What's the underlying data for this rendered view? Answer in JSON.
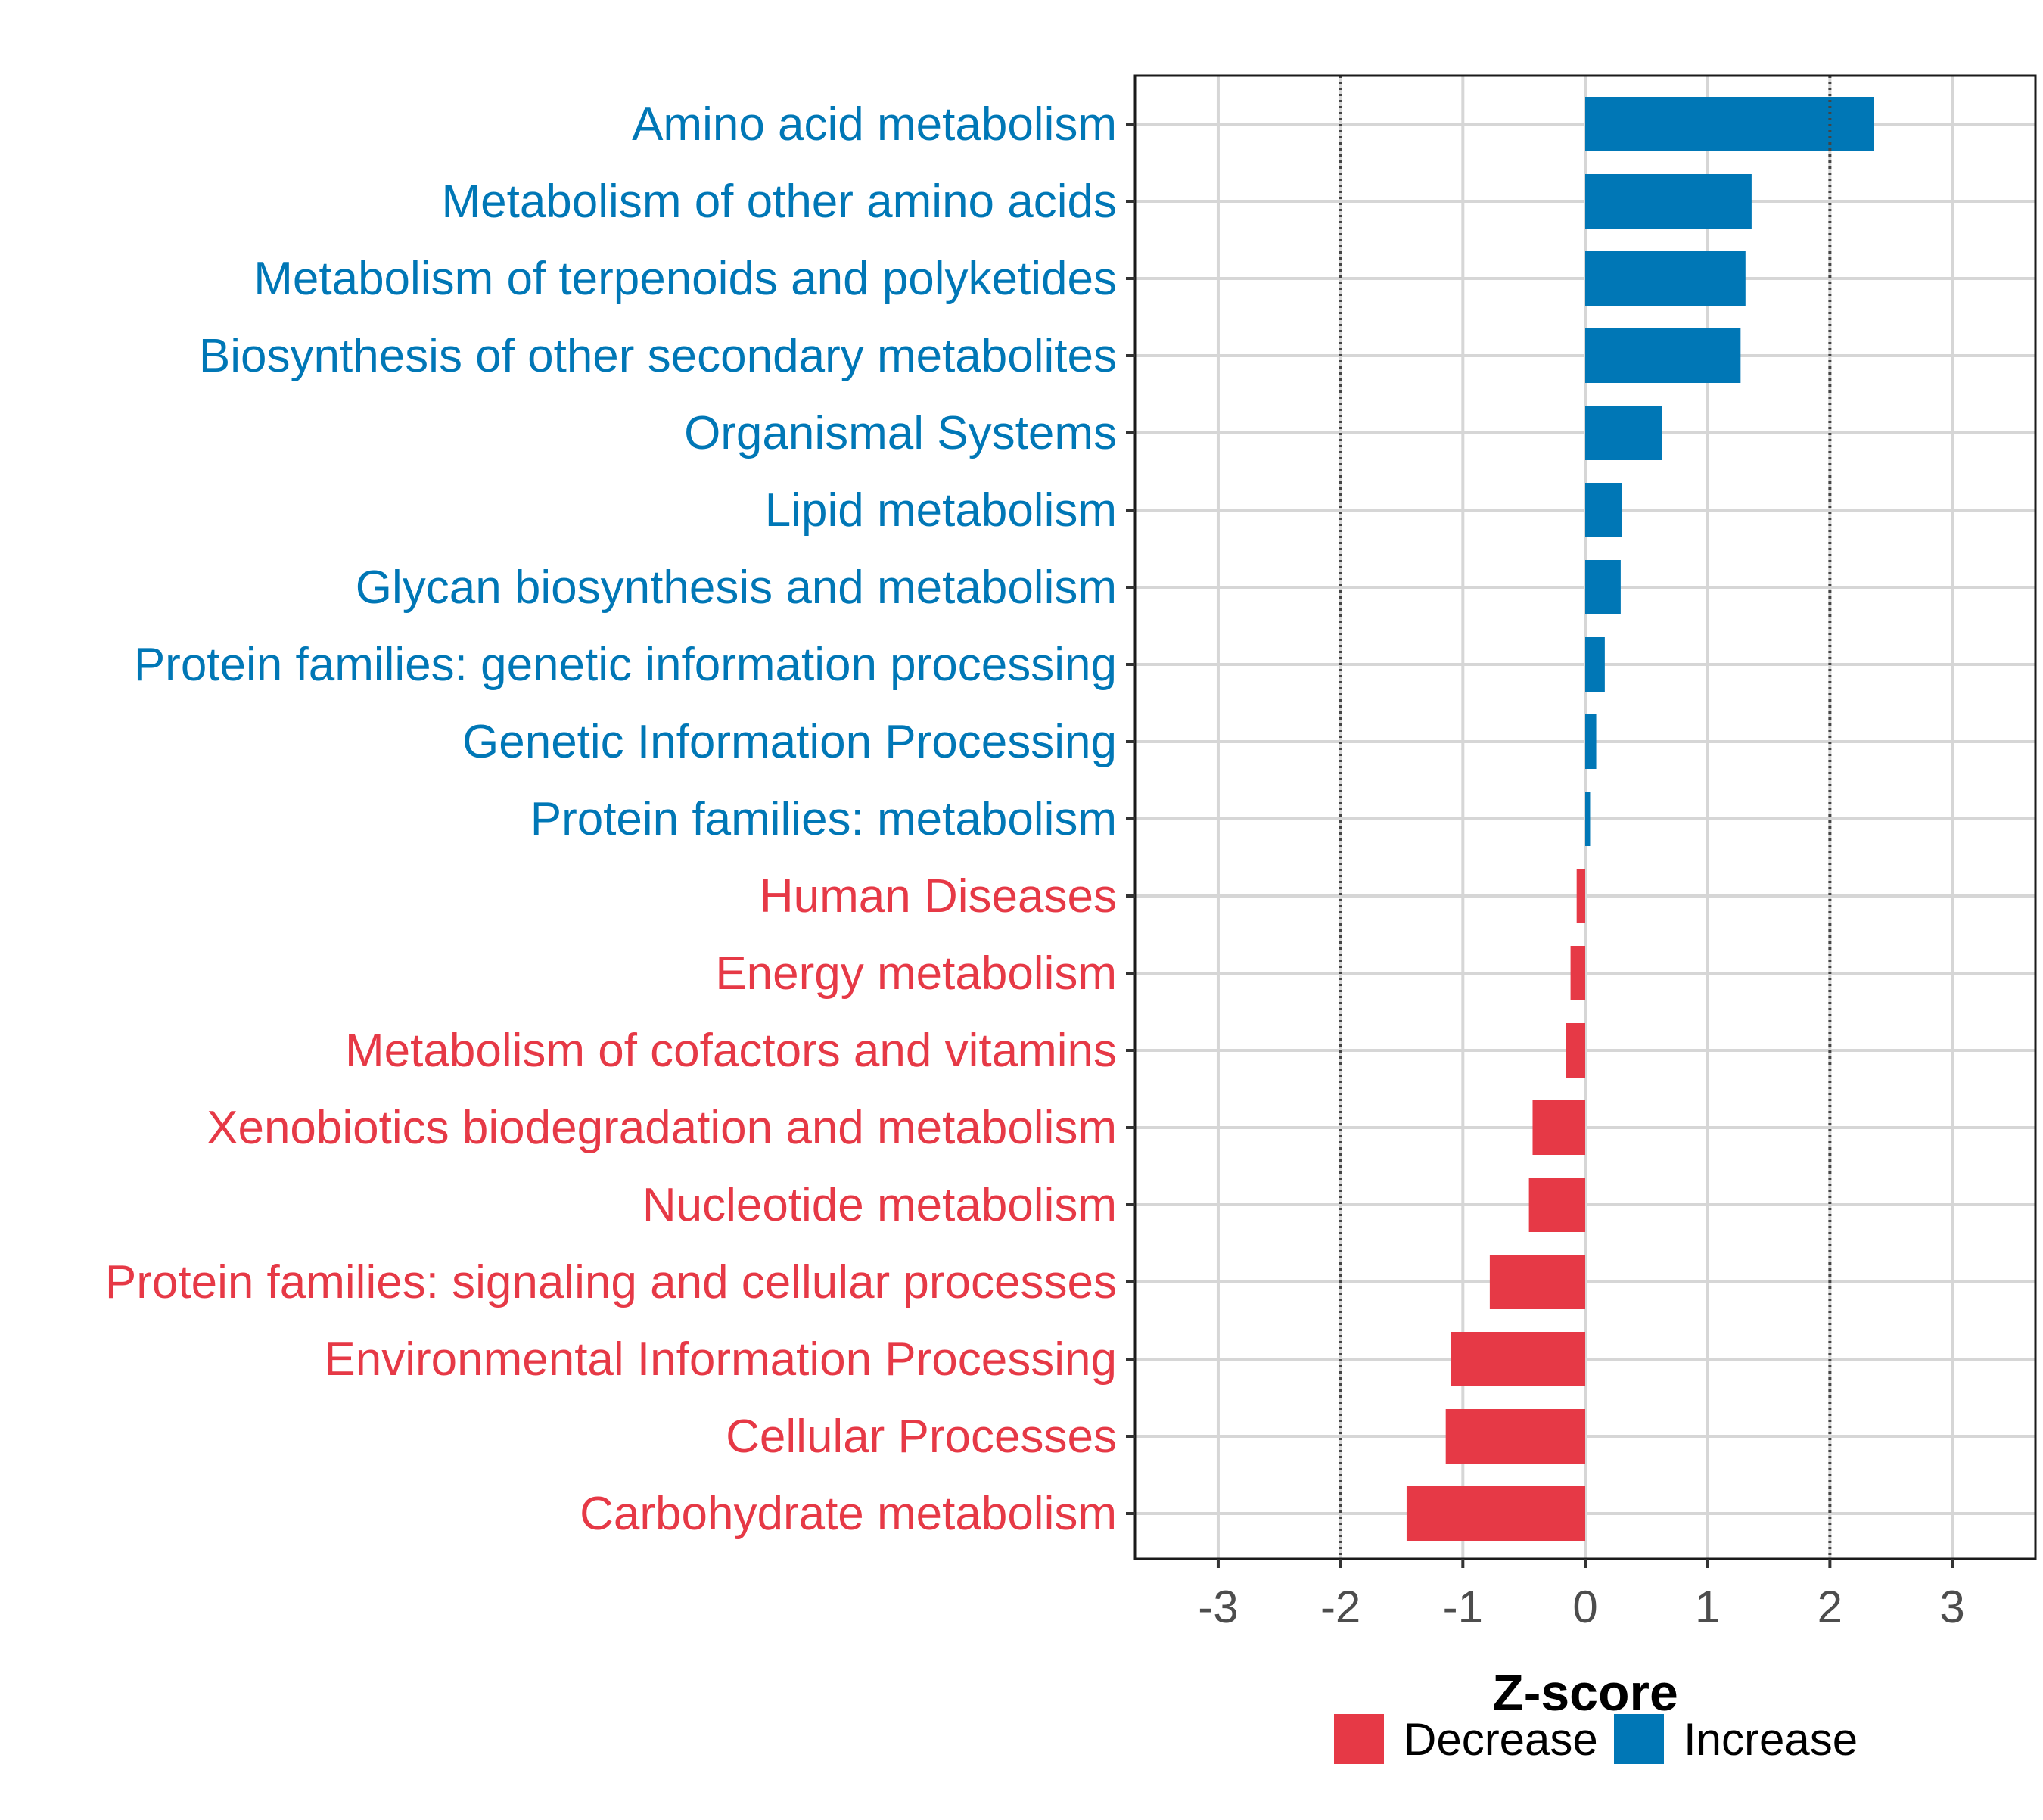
{
  "chart_data": {
    "type": "bar",
    "orientation": "horizontal",
    "categories": [
      "Amino acid metabolism",
      "Metabolism of other amino acids",
      "Metabolism of terpenoids and polyketides",
      "Biosynthesis of other secondary metabolites",
      "Organismal Systems",
      "Lipid metabolism",
      "Glycan biosynthesis and metabolism",
      "Protein families: genetic information processing",
      "Genetic Information Processing",
      "Protein families: metabolism",
      "Human Diseases",
      "Energy metabolism",
      "Metabolism of cofactors and vitamins",
      "Xenobiotics biodegradation and metabolism",
      "Nucleotide metabolism",
      "Protein families: signaling and cellular processes",
      "Environmental Information Processing",
      "Cellular Processes",
      "Carbohydrate metabolism"
    ],
    "values": [
      2.36,
      1.36,
      1.31,
      1.27,
      0.63,
      0.3,
      0.29,
      0.16,
      0.09,
      0.04,
      -0.07,
      -0.12,
      -0.16,
      -0.43,
      -0.46,
      -0.78,
      -1.1,
      -1.14,
      -1.46
    ],
    "groups": [
      "Increase",
      "Increase",
      "Increase",
      "Increase",
      "Increase",
      "Increase",
      "Increase",
      "Increase",
      "Increase",
      "Increase",
      "Decrease",
      "Decrease",
      "Decrease",
      "Decrease",
      "Decrease",
      "Decrease",
      "Decrease",
      "Decrease",
      "Decrease"
    ],
    "xlabel": "Z-score",
    "ylabel": "",
    "xlim": [
      -3.68,
      3.68
    ],
    "xticks": [
      -3,
      -2,
      -1,
      0,
      1,
      2,
      3
    ],
    "xtick_labels": [
      "-3",
      "-2",
      "-1",
      "0",
      "1",
      "2",
      "3"
    ],
    "reference_lines": [
      -2,
      2
    ],
    "grid": true,
    "legend": {
      "position": "bottom",
      "items": [
        {
          "label": "Decrease",
          "color": "#e63946"
        },
        {
          "label": "Increase",
          "color": "#0077b6"
        }
      ]
    },
    "colors": {
      "Increase": "#0077b6",
      "Decrease": "#e63946"
    }
  }
}
